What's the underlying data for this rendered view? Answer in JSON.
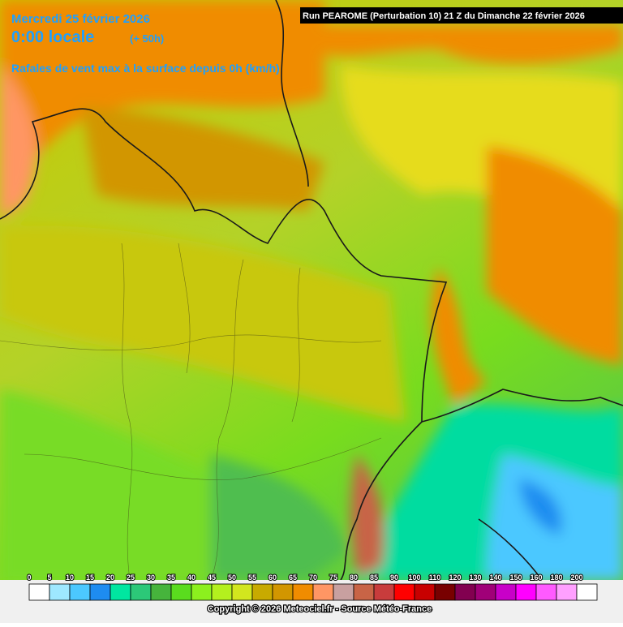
{
  "header": {
    "date": "Mercredi 25 février 2026",
    "time": "0:00 locale",
    "offset": "(+ 50h)",
    "subtitle": "Rafales de vent max à la surface depuis 0h (km/h)",
    "run": "Run PEAROME (Perturbation 10) 21 Z du Dimanche 22 février 2026"
  },
  "legend": {
    "items": [
      {
        "label": 0,
        "color": "#ffffff"
      },
      {
        "label": 5,
        "color": "#9ee8ff"
      },
      {
        "label": 10,
        "color": "#4cc8ff"
      },
      {
        "label": 15,
        "color": "#1e8cf0"
      },
      {
        "label": 20,
        "color": "#00e6a0"
      },
      {
        "label": 25,
        "color": "#2cc878"
      },
      {
        "label": 30,
        "color": "#46b43c"
      },
      {
        "label": 35,
        "color": "#5adc1e"
      },
      {
        "label": 40,
        "color": "#8cf01e"
      },
      {
        "label": 45,
        "color": "#b4f01e"
      },
      {
        "label": 50,
        "color": "#d2e61e"
      },
      {
        "label": 55,
        "color": "#c8aa00"
      },
      {
        "label": 60,
        "color": "#d29600"
      },
      {
        "label": 65,
        "color": "#f08c00"
      },
      {
        "label": 70,
        "color": "#ff9664"
      },
      {
        "label": 75,
        "color": "#c8a0a0"
      },
      {
        "label": 80,
        "color": "#c86446"
      },
      {
        "label": 85,
        "color": "#c83c3c"
      },
      {
        "label": 90,
        "color": "#ff0000"
      },
      {
        "label": 100,
        "color": "#c80000"
      },
      {
        "label": 110,
        "color": "#780000"
      },
      {
        "label": 120,
        "color": "#820050"
      },
      {
        "label": 130,
        "color": "#a00078"
      },
      {
        "label": 140,
        "color": "#c800c8"
      },
      {
        "label": 150,
        "color": "#ff00ff"
      },
      {
        "label": 160,
        "color": "#ff5aff"
      },
      {
        "label": 180,
        "color": "#ffa0ff"
      },
      {
        "label": 200,
        "color": "#ffffff"
      }
    ]
  },
  "copyright": "Copyright © 2026 Meteociel.fr - Source Météo-France"
}
